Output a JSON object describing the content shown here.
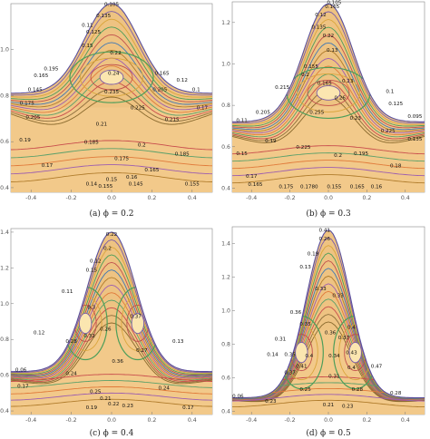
{
  "figure": {
    "panels": [
      {
        "caption": "(a) ϕ = 0.2",
        "chart_data": {
          "type": "contour",
          "x_ticks": [
            "-0.4",
            "-0.2",
            "0.0",
            "0.2",
            "0.4"
          ],
          "y_ticks": [
            "0.4",
            "0.6",
            "0.8",
            "1.0"
          ],
          "xlim": [
            -0.5,
            0.5
          ],
          "ylim": [
            0.38,
            1.2
          ],
          "peak": 1.2,
          "edge": 0.81,
          "eddies": [
            {
              "x": 0,
              "y": 0.88
            }
          ],
          "contour_labels": [
            {
              "t": "0.105",
              "x": 0.0,
              "y": 1.19
            },
            {
              "t": "0.135",
              "x": -0.04,
              "y": 1.14
            },
            {
              "t": "0.11",
              "x": -0.12,
              "y": 1.1
            },
            {
              "t": "0.125",
              "x": -0.09,
              "y": 1.07
            },
            {
              "t": "0.15",
              "x": -0.12,
              "y": 1.01
            },
            {
              "t": "0.22",
              "x": 0.02,
              "y": 0.98
            },
            {
              "t": "0.195",
              "x": -0.3,
              "y": 0.91
            },
            {
              "t": "0.165",
              "x": -0.35,
              "y": 0.88
            },
            {
              "t": "0.24",
              "x": 0.01,
              "y": 0.89
            },
            {
              "t": "0.165",
              "x": 0.25,
              "y": 0.89
            },
            {
              "t": "0.12",
              "x": 0.35,
              "y": 0.86
            },
            {
              "t": "0.145",
              "x": -0.38,
              "y": 0.82
            },
            {
              "t": "0.235",
              "x": 0.0,
              "y": 0.81
            },
            {
              "t": "0.205",
              "x": 0.24,
              "y": 0.82
            },
            {
              "t": "0.1",
              "x": 0.42,
              "y": 0.82
            },
            {
              "t": "0.175",
              "x": -0.42,
              "y": 0.76
            },
            {
              "t": "0.225",
              "x": 0.13,
              "y": 0.74
            },
            {
              "t": "0.17",
              "x": 0.45,
              "y": 0.74
            },
            {
              "t": "0.205",
              "x": -0.39,
              "y": 0.7
            },
            {
              "t": "0.215",
              "x": 0.3,
              "y": 0.69
            },
            {
              "t": "0.21",
              "x": -0.05,
              "y": 0.67
            },
            {
              "t": "0.19",
              "x": -0.43,
              "y": 0.6
            },
            {
              "t": "0.185",
              "x": -0.1,
              "y": 0.59
            },
            {
              "t": "0.2",
              "x": 0.15,
              "y": 0.58
            },
            {
              "t": "0.175",
              "x": 0.05,
              "y": 0.52
            },
            {
              "t": "0.185",
              "x": 0.35,
              "y": 0.54
            },
            {
              "t": "0.17",
              "x": -0.32,
              "y": 0.49
            },
            {
              "t": "0.165",
              "x": 0.2,
              "y": 0.47
            },
            {
              "t": "0.16",
              "x": 0.1,
              "y": 0.44
            },
            {
              "t": "0.15",
              "x": 0.0,
              "y": 0.43
            },
            {
              "t": "0.14",
              "x": -0.1,
              "y": 0.41
            },
            {
              "t": "0.145",
              "x": 0.12,
              "y": 0.41
            },
            {
              "t": "0.155",
              "x": 0.4,
              "y": 0.41
            },
            {
              "t": "0.155",
              "x": -0.03,
              "y": 0.4
            }
          ]
        }
      },
      {
        "caption": "(b) ϕ = 0.3",
        "chart_data": {
          "type": "contour",
          "x_ticks": [
            "-0.4",
            "-0.2",
            "0.0",
            "0.2",
            "0.4"
          ],
          "y_ticks": [
            "0.4",
            "0.6",
            "0.8",
            "1.0",
            "1.2"
          ],
          "xlim": [
            -0.5,
            0.5
          ],
          "ylim": [
            0.38,
            1.3
          ],
          "peak": 1.29,
          "edge": 0.72,
          "eddies": [
            {
              "x": 0,
              "y": 0.86
            }
          ],
          "contour_labels": [
            {
              "t": "0.105",
              "x": 0.03,
              "y": 1.29
            },
            {
              "t": "0.165",
              "x": 0.02,
              "y": 1.27
            },
            {
              "t": "0.12",
              "x": -0.04,
              "y": 1.23
            },
            {
              "t": "0.135",
              "x": -0.05,
              "y": 1.17
            },
            {
              "t": "0.22",
              "x": 0.0,
              "y": 1.13
            },
            {
              "t": "0.13",
              "x": 0.02,
              "y": 1.06
            },
            {
              "t": "0.155",
              "x": -0.09,
              "y": 0.98
            },
            {
              "t": "0.2",
              "x": -0.12,
              "y": 0.94
            },
            {
              "t": "0.165",
              "x": -0.02,
              "y": 0.9
            },
            {
              "t": "0.23",
              "x": 0.1,
              "y": 0.91
            },
            {
              "t": "0.215",
              "x": -0.24,
              "y": 0.88
            },
            {
              "t": "0.1",
              "x": 0.32,
              "y": 0.86
            },
            {
              "t": "0.26",
              "x": 0.06,
              "y": 0.83
            },
            {
              "t": "0.255",
              "x": -0.06,
              "y": 0.76
            },
            {
              "t": "0.125",
              "x": 0.35,
              "y": 0.8
            },
            {
              "t": "0.205",
              "x": -0.34,
              "y": 0.76
            },
            {
              "t": "0.23",
              "x": 0.14,
              "y": 0.73
            },
            {
              "t": "0.225",
              "x": 0.31,
              "y": 0.67
            },
            {
              "t": "0.095",
              "x": 0.45,
              "y": 0.74
            },
            {
              "t": "0.11",
              "x": -0.45,
              "y": 0.72
            },
            {
              "t": "0.19",
              "x": -0.3,
              "y": 0.62
            },
            {
              "t": "0.225",
              "x": -0.13,
              "y": 0.59
            },
            {
              "t": "0.195",
              "x": 0.17,
              "y": 0.56
            },
            {
              "t": "0.135",
              "x": 0.45,
              "y": 0.63
            },
            {
              "t": "0.15",
              "x": -0.45,
              "y": 0.56
            },
            {
              "t": "0.2",
              "x": 0.05,
              "y": 0.55
            },
            {
              "t": "0.18",
              "x": 0.35,
              "y": 0.5
            },
            {
              "t": "0.17",
              "x": -0.4,
              "y": 0.45
            },
            {
              "t": "0.165",
              "x": -0.38,
              "y": 0.41
            },
            {
              "t": "0.175",
              "x": -0.22,
              "y": 0.4
            },
            {
              "t": "0.1780",
              "x": -0.1,
              "y": 0.4
            },
            {
              "t": "0.155",
              "x": 0.03,
              "y": 0.4
            },
            {
              "t": "0.165",
              "x": 0.15,
              "y": 0.4
            },
            {
              "t": "0.16",
              "x": 0.25,
              "y": 0.4
            }
          ]
        }
      },
      {
        "caption": "(c) ϕ = 0.4",
        "chart_data": {
          "type": "contour",
          "x_ticks": [
            "-0.4",
            "-0.2",
            "0.0",
            "0.2",
            "0.4"
          ],
          "y_ticks": [
            "0.4",
            "0.6",
            "0.8",
            "1.0",
            "1.2",
            "1.4"
          ],
          "xlim": [
            -0.5,
            0.5
          ],
          "ylim": [
            0.38,
            1.42
          ],
          "peak": 1.4,
          "edge": 0.62,
          "eddies": [
            {
              "x": -0.13,
              "y": 0.89
            },
            {
              "x": 0.13,
              "y": 0.89
            }
          ],
          "contour_labels": [
            {
              "t": "0.22",
              "x": 0.0,
              "y": 1.38
            },
            {
              "t": "0.2",
              "x": -0.02,
              "y": 1.3
            },
            {
              "t": "0.12",
              "x": -0.08,
              "y": 1.23
            },
            {
              "t": "0.15",
              "x": -0.1,
              "y": 1.18
            },
            {
              "t": "0.11",
              "x": -0.22,
              "y": 1.06
            },
            {
              "t": "0.3",
              "x": -0.1,
              "y": 0.97
            },
            {
              "t": "0.37",
              "x": 0.12,
              "y": 0.92
            },
            {
              "t": "0.32",
              "x": -0.11,
              "y": 0.81
            },
            {
              "t": "0.28",
              "x": -0.2,
              "y": 0.78
            },
            {
              "t": "0.12",
              "x": -0.36,
              "y": 0.83
            },
            {
              "t": "0.26",
              "x": -0.03,
              "y": 0.85
            },
            {
              "t": "0.27",
              "x": 0.15,
              "y": 0.73
            },
            {
              "t": "0.13",
              "x": 0.33,
              "y": 0.78
            },
            {
              "t": "0.36",
              "x": 0.03,
              "y": 0.67
            },
            {
              "t": "0.24",
              "x": -0.2,
              "y": 0.6
            },
            {
              "t": "0.06",
              "x": -0.45,
              "y": 0.62
            },
            {
              "t": "0.17",
              "x": -0.44,
              "y": 0.53
            },
            {
              "t": "0.24",
              "x": 0.26,
              "y": 0.52
            },
            {
              "t": "0.25",
              "x": -0.08,
              "y": 0.5
            },
            {
              "t": "0.21",
              "x": -0.03,
              "y": 0.46
            },
            {
              "t": "0.22",
              "x": 0.01,
              "y": 0.43
            },
            {
              "t": "0.23",
              "x": 0.08,
              "y": 0.42
            },
            {
              "t": "0.19",
              "x": -0.1,
              "y": 0.41
            },
            {
              "t": "0.17",
              "x": 0.38,
              "y": 0.41
            }
          ]
        }
      },
      {
        "caption": "(d) ϕ = 0.5",
        "chart_data": {
          "type": "contour",
          "x_ticks": [
            "-0.4",
            "-0.2",
            "0.0",
            "0.2",
            "0.4"
          ],
          "y_ticks": [
            "0.4",
            "0.6",
            "0.8",
            "1.0",
            "1.2",
            "1.4"
          ],
          "xlim": [
            -0.5,
            0.5
          ],
          "ylim": [
            0.38,
            1.5
          ],
          "peak": 1.48,
          "edge": 0.48,
          "eddies": [
            {
              "x": -0.14,
              "y": 0.75
            },
            {
              "x": 0.14,
              "y": 0.75
            }
          ],
          "contour_labels": [
            {
              "t": "0.41",
              "x": -0.02,
              "y": 1.47
            },
            {
              "t": "0.26",
              "x": -0.02,
              "y": 1.42
            },
            {
              "t": "0.19",
              "x": -0.08,
              "y": 1.33
            },
            {
              "t": "0.13",
              "x": -0.12,
              "y": 1.25
            },
            {
              "t": "0.33",
              "x": -0.04,
              "y": 1.12
            },
            {
              "t": "0.33",
              "x": 0.05,
              "y": 1.08
            },
            {
              "t": "0.36",
              "x": -0.17,
              "y": 0.98
            },
            {
              "t": "0.35",
              "x": -0.12,
              "y": 0.91
            },
            {
              "t": "0.36",
              "x": 0.01,
              "y": 0.86
            },
            {
              "t": "0.4",
              "x": 0.12,
              "y": 0.89
            },
            {
              "t": "0.31",
              "x": -0.25,
              "y": 0.82
            },
            {
              "t": "0.37",
              "x": 0.08,
              "y": 0.83
            },
            {
              "t": "0.14",
              "x": -0.29,
              "y": 0.73
            },
            {
              "t": "0.35",
              "x": -0.2,
              "y": 0.73
            },
            {
              "t": "0.4",
              "x": -0.1,
              "y": 0.72
            },
            {
              "t": "0.34",
              "x": 0.03,
              "y": 0.72
            },
            {
              "t": "0.43",
              "x": 0.12,
              "y": 0.74
            },
            {
              "t": "0.41",
              "x": -0.14,
              "y": 0.66
            },
            {
              "t": "0.4",
              "x": 0.12,
              "y": 0.65
            },
            {
              "t": "0.37",
              "x": -0.2,
              "y": 0.62
            },
            {
              "t": "0.31",
              "x": 0.03,
              "y": 0.6
            },
            {
              "t": "0.47",
              "x": 0.25,
              "y": 0.66
            },
            {
              "t": "0.25",
              "x": -0.12,
              "y": 0.52
            },
            {
              "t": "0.28",
              "x": 0.15,
              "y": 0.52
            },
            {
              "t": "0.28",
              "x": 0.35,
              "y": 0.5
            },
            {
              "t": "0.23",
              "x": -0.3,
              "y": 0.45
            },
            {
              "t": "0.06",
              "x": -0.47,
              "y": 0.48
            },
            {
              "t": "0.21",
              "x": 0.0,
              "y": 0.43
            },
            {
              "t": "0.23",
              "x": 0.1,
              "y": 0.42
            }
          ]
        }
      }
    ]
  }
}
